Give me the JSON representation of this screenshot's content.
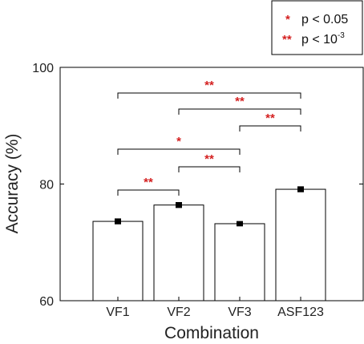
{
  "chart_data": {
    "type": "bar",
    "categories": [
      "VF1",
      "VF2",
      "VF3",
      "ASF123"
    ],
    "values": [
      73.6,
      76.4,
      73.2,
      79.1
    ],
    "error": [
      0.3,
      0.3,
      0.25,
      0.3
    ],
    "xlabel": "Combination",
    "ylabel": "Accuracy (%)",
    "ylim": [
      60,
      100
    ],
    "yticks": [
      "60",
      "80",
      "100"
    ],
    "grid": false,
    "bar_color": "#ffffff",
    "significance": [
      {
        "from": "VF1",
        "to": "ASF123",
        "stars": "**"
      },
      {
        "from": "VF2",
        "to": "ASF123",
        "stars": "**"
      },
      {
        "from": "VF3",
        "to": "ASF123",
        "stars": "**"
      },
      {
        "from": "VF1",
        "to": "VF3",
        "stars": "*"
      },
      {
        "from": "VF2",
        "to": "VF3",
        "stars": "**"
      },
      {
        "from": "VF1",
        "to": "VF2",
        "stars": "**"
      }
    ],
    "legend": {
      "placement": "top-right",
      "items": [
        {
          "symbol": "*",
          "label": "p < 0.05"
        },
        {
          "symbol": "**",
          "label": "p < 10",
          "superscript": "-3"
        }
      ]
    },
    "star_color": "#d42020"
  }
}
